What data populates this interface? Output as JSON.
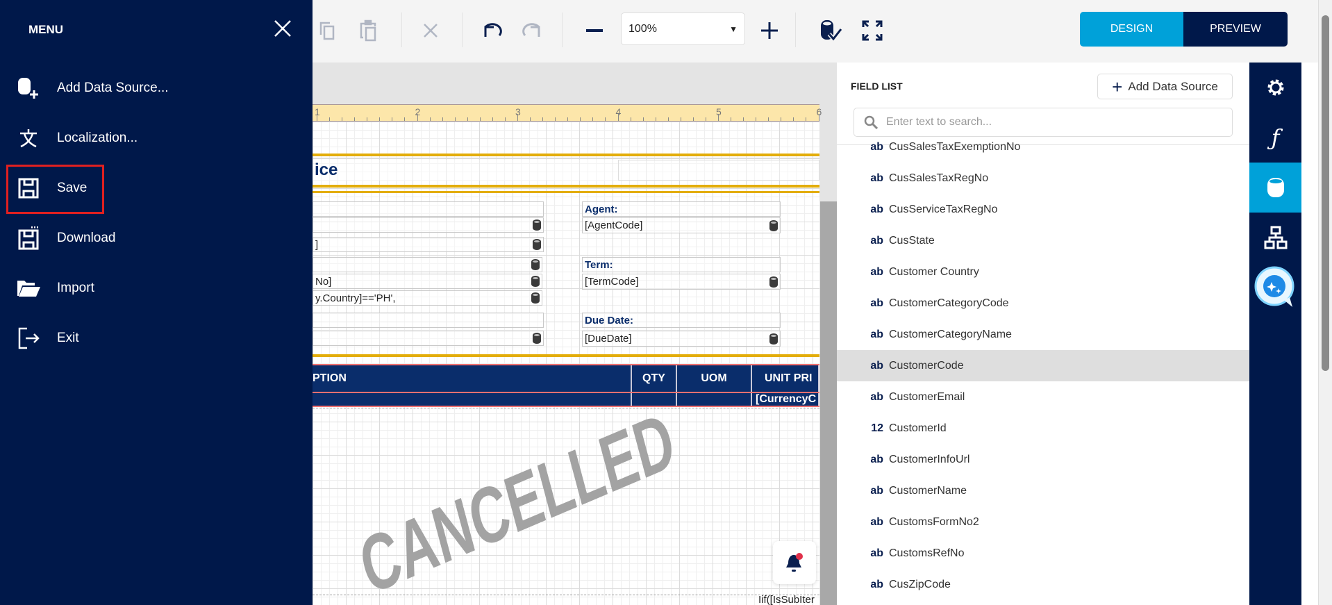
{
  "toolbar": {
    "zoom": "100%",
    "design": "DESIGN",
    "preview": "PREVIEW"
  },
  "menu": {
    "title": "MENU",
    "items": [
      {
        "label": "Add Data Source...",
        "icon": "database-add-icon"
      },
      {
        "label": "Localization...",
        "icon": "localization-icon"
      },
      {
        "label": "Save",
        "icon": "save-icon",
        "highlighted": true
      },
      {
        "label": "Download",
        "icon": "download-icon"
      },
      {
        "label": "Import",
        "icon": "folder-open-icon"
      },
      {
        "label": "Exit",
        "icon": "exit-icon"
      }
    ]
  },
  "ruler": [
    "1",
    "2",
    "3",
    "4",
    "5",
    "6"
  ],
  "report": {
    "title_fragment": "ice",
    "left_fields": [
      "]",
      "No]",
      "y.Country]=='PH',"
    ],
    "agent_label": "Agent:",
    "agent_value": "[AgentCode]",
    "term_label": "Term:",
    "term_value": "[TermCode]",
    "due_label": "Due Date:",
    "due_value": "[DueDate]",
    "col_desc": "PTION",
    "col_qty": "QTY",
    "col_uom": "UOM",
    "col_price": "UNIT PRI",
    "currency": "[CurrencyC",
    "footer_expr": "Iif([IsSubIter",
    "watermark": "CANCELLED"
  },
  "field_list": {
    "title": "FIELD LIST",
    "add_button": "Add Data Source",
    "search_placeholder": "Enter text to search...",
    "items": [
      {
        "type": "ab",
        "name": "CusSalesTaxExemptionNo"
      },
      {
        "type": "ab",
        "name": "CusSalesTaxRegNo"
      },
      {
        "type": "ab",
        "name": "CusServiceTaxRegNo"
      },
      {
        "type": "ab",
        "name": "CusState"
      },
      {
        "type": "ab",
        "name": "Customer Country"
      },
      {
        "type": "ab",
        "name": "CustomerCategoryCode"
      },
      {
        "type": "ab",
        "name": "CustomerCategoryName"
      },
      {
        "type": "ab",
        "name": "CustomerCode",
        "selected": true
      },
      {
        "type": "ab",
        "name": "CustomerEmail"
      },
      {
        "type": "12",
        "name": "CustomerId"
      },
      {
        "type": "ab",
        "name": "CustomerInfoUrl"
      },
      {
        "type": "ab",
        "name": "CustomerName"
      },
      {
        "type": "ab",
        "name": "CustomsFormNo2"
      },
      {
        "type": "ab",
        "name": "CustomsRefNo"
      },
      {
        "type": "ab",
        "name": "CusZipCode"
      }
    ]
  },
  "colors": {
    "navy": "#00184a",
    "accent": "#00a1d9",
    "highlight": "#e02020",
    "watermark": "#a3a3a3"
  }
}
